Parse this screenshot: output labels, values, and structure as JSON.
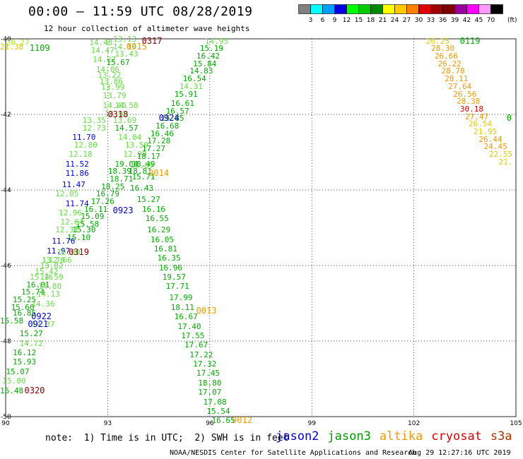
{
  "header": {
    "title": "00:00 – 11:59 UTC 08/28/2019",
    "subtitle": "12 hour collection of altimeter wave heights"
  },
  "colorbar": {
    "unit_label": "(ft)",
    "colors": [
      "#808080",
      "#00ffff",
      "#00a0ff",
      "#0000e0",
      "#00ff00",
      "#00cc00",
      "#008800",
      "#ffff00",
      "#ffc800",
      "#ff8000",
      "#e00000",
      "#a00000",
      "#800000",
      "#990099",
      "#ff00ff",
      "#ff99ff",
      "#000000"
    ],
    "ticks": [
      "3",
      "6",
      "9",
      "12",
      "15",
      "18",
      "21",
      "24",
      "27",
      "30",
      "33",
      "36",
      "39",
      "42",
      "45",
      "70"
    ]
  },
  "map": {
    "lon_min": 90,
    "lon_max": 105,
    "lat_min": -50,
    "lat_max": -40,
    "lon_ticks": [
      "90",
      "93",
      "96",
      "99",
      "102",
      "105"
    ],
    "lat_ticks": [
      "-40",
      "-42",
      "-44",
      "-46",
      "-48",
      "-50"
    ]
  },
  "palette": {
    "green": "#00aa00",
    "lightgreen": "#66dd44",
    "yellowgreen": "#aaee22",
    "blue": "#0000cc",
    "yellow": "#ddcc00",
    "orange": "#ee9900",
    "dorange": "#dd7700",
    "red": "#cc0000",
    "dred": "#880000"
  },
  "chart_data": {
    "type": "scatter",
    "xlabel": "",
    "ylabel": "",
    "xlim": [
      90,
      105
    ],
    "ylim": [
      -50,
      -40
    ],
    "points": [
      {
        "x": 90.35,
        "y": -40.1,
        "v": "20.27",
        "c": "yellowgreen"
      },
      {
        "x": 90.15,
        "y": -40.2,
        "v": "21.38",
        "c": "yellow"
      },
      {
        "x": 92.8,
        "y": -40.1,
        "v": "14.48",
        "c": "lightgreen"
      },
      {
        "x": 93.5,
        "y": -40.0,
        "v": "13.13",
        "c": "lightgreen"
      },
      {
        "x": 92.85,
        "y": -40.3,
        "v": "14.47",
        "c": "lightgreen"
      },
      {
        "x": 93.5,
        "y": -40.2,
        "v": "14.19",
        "c": "lightgreen"
      },
      {
        "x": 93.55,
        "y": -40.4,
        "v": "13.43",
        "c": "lightgreen"
      },
      {
        "x": 92.9,
        "y": -40.55,
        "v": "14.27",
        "c": "lightgreen"
      },
      {
        "x": 93.3,
        "y": -40.62,
        "v": "15.67",
        "c": "green"
      },
      {
        "x": 93.0,
        "y": -40.8,
        "v": "14.06",
        "c": "lightgreen"
      },
      {
        "x": 93.05,
        "y": -40.96,
        "v": "13.22",
        "c": "lightgreen"
      },
      {
        "x": 93.1,
        "y": -41.12,
        "v": "13.86",
        "c": "lightgreen"
      },
      {
        "x": 93.15,
        "y": -41.28,
        "v": "13.99",
        "c": "lightgreen"
      },
      {
        "x": 93.2,
        "y": -41.5,
        "v": "13.79",
        "c": "lightgreen"
      },
      {
        "x": 93.2,
        "y": -41.75,
        "v": "14.40",
        "c": "lightgreen"
      },
      {
        "x": 93.55,
        "y": -41.75,
        "v": "14.50",
        "c": "lightgreen"
      },
      {
        "x": 93.25,
        "y": -41.98,
        "v": "13.93",
        "c": "lightgreen"
      },
      {
        "x": 92.6,
        "y": -42.15,
        "v": "13.35",
        "c": "lightgreen"
      },
      {
        "x": 93.5,
        "y": -42.15,
        "v": "13.69",
        "c": "lightgreen"
      },
      {
        "x": 92.6,
        "y": -42.35,
        "v": "12.73",
        "c": "lightgreen"
      },
      {
        "x": 93.55,
        "y": -42.35,
        "v": "14.57",
        "c": "green"
      },
      {
        "x": 92.3,
        "y": -42.6,
        "v": "11.70",
        "c": "blue"
      },
      {
        "x": 93.65,
        "y": -42.6,
        "v": "14.04",
        "c": "lightgreen"
      },
      {
        "x": 92.35,
        "y": -42.8,
        "v": "12.80",
        "c": "lightgreen"
      },
      {
        "x": 93.85,
        "y": -42.8,
        "v": "13.50",
        "c": "lightgreen"
      },
      {
        "x": 92.2,
        "y": -43.05,
        "v": "12.18",
        "c": "lightgreen"
      },
      {
        "x": 93.8,
        "y": -43.05,
        "v": "12.99",
        "c": "lightgreen"
      },
      {
        "x": 92.1,
        "y": -43.3,
        "v": "11.52",
        "c": "blue"
      },
      {
        "x": 93.55,
        "y": -43.3,
        "v": "19.04",
        "c": "green"
      },
      {
        "x": 94.0,
        "y": -43.35,
        "v": "15.89",
        "c": "lightgreen"
      },
      {
        "x": 92.1,
        "y": -43.55,
        "v": "11.86",
        "c": "blue"
      },
      {
        "x": 93.35,
        "y": -43.5,
        "v": "18.39",
        "c": "green"
      },
      {
        "x": 93.4,
        "y": -43.7,
        "v": "18.71",
        "c": "green"
      },
      {
        "x": 94.05,
        "y": -43.65,
        "v": "15.71",
        "c": "green"
      },
      {
        "x": 92.0,
        "y": -43.85,
        "v": "11.47",
        "c": "blue"
      },
      {
        "x": 93.15,
        "y": -43.9,
        "v": "18.25",
        "c": "green"
      },
      {
        "x": 94.0,
        "y": -43.95,
        "v": "16.43",
        "c": "green"
      },
      {
        "x": 91.8,
        "y": -44.1,
        "v": "12.05",
        "c": "lightgreen"
      },
      {
        "x": 93.0,
        "y": -44.1,
        "v": "16.79",
        "c": "green"
      },
      {
        "x": 92.1,
        "y": -44.35,
        "v": "11.74",
        "c": "blue"
      },
      {
        "x": 92.85,
        "y": -44.3,
        "v": "17.26",
        "c": "green"
      },
      {
        "x": 94.2,
        "y": -44.25,
        "v": "15.27",
        "c": "green"
      },
      {
        "x": 92.65,
        "y": -44.5,
        "v": "16.11",
        "c": "green"
      },
      {
        "x": 91.9,
        "y": -44.6,
        "v": "12.96",
        "c": "lightgreen"
      },
      {
        "x": 92.55,
        "y": -44.7,
        "v": "15.09",
        "c": "green"
      },
      {
        "x": 94.35,
        "y": -44.5,
        "v": "16.16",
        "c": "green"
      },
      {
        "x": 92.4,
        "y": -44.9,
        "v": "15.58",
        "c": "green"
      },
      {
        "x": 91.95,
        "y": -44.85,
        "v": "12.64",
        "c": "lightgreen"
      },
      {
        "x": 94.45,
        "y": -44.75,
        "v": "16.55",
        "c": "green"
      },
      {
        "x": 91.8,
        "y": -45.05,
        "v": "12.31",
        "c": "lightgreen"
      },
      {
        "x": 92.3,
        "y": -45.05,
        "v": "15.30",
        "c": "green"
      },
      {
        "x": 94.5,
        "y": -45.05,
        "v": "16.29",
        "c": "green"
      },
      {
        "x": 92.15,
        "y": -45.25,
        "v": "15.10",
        "c": "green"
      },
      {
        "x": 91.7,
        "y": -45.35,
        "v": "11.76",
        "c": "blue"
      },
      {
        "x": 94.6,
        "y": -45.3,
        "v": "16.05",
        "c": "green"
      },
      {
        "x": 91.55,
        "y": -45.6,
        "v": "11.97",
        "c": "blue"
      },
      {
        "x": 91.85,
        "y": -45.65,
        "v": "12.80",
        "c": "lightgreen"
      },
      {
        "x": 94.7,
        "y": -45.55,
        "v": "16.81",
        "c": "green"
      },
      {
        "x": 91.4,
        "y": -45.85,
        "v": "13.76",
        "c": "lightgreen"
      },
      {
        "x": 91.6,
        "y": -45.85,
        "v": "12.66",
        "c": "lightgreen"
      },
      {
        "x": 94.8,
        "y": -45.8,
        "v": "16.35",
        "c": "green"
      },
      {
        "x": 91.35,
        "y": -46.0,
        "v": "13.82",
        "c": "lightgreen"
      },
      {
        "x": 91.2,
        "y": -46.15,
        "v": "15.42",
        "c": "lightgreen"
      },
      {
        "x": 94.85,
        "y": -46.05,
        "v": "16.96",
        "c": "green"
      },
      {
        "x": 91.05,
        "y": -46.3,
        "v": "15.16",
        "c": "lightgreen"
      },
      {
        "x": 91.35,
        "y": -46.3,
        "v": "14.59",
        "c": "lightgreen"
      },
      {
        "x": 94.95,
        "y": -46.3,
        "v": "19.57",
        "c": "green"
      },
      {
        "x": 90.95,
        "y": -46.5,
        "v": "16.01",
        "c": "green"
      },
      {
        "x": 91.3,
        "y": -46.55,
        "v": "14.80",
        "c": "lightgreen"
      },
      {
        "x": 95.05,
        "y": -46.55,
        "v": "17.71",
        "c": "green"
      },
      {
        "x": 90.8,
        "y": -46.7,
        "v": "15.74",
        "c": "green"
      },
      {
        "x": 91.25,
        "y": -46.75,
        "v": "14.13",
        "c": "lightgreen"
      },
      {
        "x": 95.15,
        "y": -46.85,
        "v": "17.99",
        "c": "green"
      },
      {
        "x": 90.55,
        "y": -46.9,
        "v": "15.25",
        "c": "green"
      },
      {
        "x": 91.1,
        "y": -47.0,
        "v": "14.36",
        "c": "lightgreen"
      },
      {
        "x": 90.5,
        "y": -47.1,
        "v": "15.60",
        "c": "green"
      },
      {
        "x": 95.2,
        "y": -47.1,
        "v": "18.11",
        "c": "green"
      },
      {
        "x": 90.55,
        "y": -47.25,
        "v": "16.85",
        "c": "green"
      },
      {
        "x": 95.3,
        "y": -47.35,
        "v": "16.67",
        "c": "green"
      },
      {
        "x": 90.15,
        "y": -47.45,
        "v": "15.58",
        "c": "green"
      },
      {
        "x": 91.1,
        "y": -47.55,
        "v": "14.37",
        "c": "lightgreen"
      },
      {
        "x": 95.4,
        "y": -47.6,
        "v": "17.40",
        "c": "green"
      },
      {
        "x": 90.75,
        "y": -47.8,
        "v": "15.27",
        "c": "green"
      },
      {
        "x": 95.5,
        "y": -47.85,
        "v": "17.55",
        "c": "green"
      },
      {
        "x": 90.75,
        "y": -48.05,
        "v": "14.72",
        "c": "lightgreen"
      },
      {
        "x": 95.6,
        "y": -48.1,
        "v": "17.67",
        "c": "green"
      },
      {
        "x": 90.55,
        "y": -48.3,
        "v": "16.12",
        "c": "green"
      },
      {
        "x": 95.75,
        "y": -48.35,
        "v": "17.22",
        "c": "green"
      },
      {
        "x": 90.55,
        "y": -48.55,
        "v": "15.93",
        "c": "green"
      },
      {
        "x": 95.85,
        "y": -48.6,
        "v": "17.32",
        "c": "green"
      },
      {
        "x": 90.35,
        "y": -48.8,
        "v": "15.07",
        "c": "green"
      },
      {
        "x": 95.95,
        "y": -48.85,
        "v": "17.45",
        "c": "green"
      },
      {
        "x": 90.25,
        "y": -49.05,
        "v": "15.00",
        "c": "lightgreen"
      },
      {
        "x": 96.0,
        "y": -49.1,
        "v": "18.80",
        "c": "green"
      },
      {
        "x": 90.05,
        "y": -49.3,
        "v": "16.48",
        "c": "green"
      },
      {
        "x": 96.0,
        "y": -49.35,
        "v": "17.07",
        "c": "green"
      },
      {
        "x": 96.15,
        "y": -49.6,
        "v": "17.08",
        "c": "green"
      },
      {
        "x": 96.25,
        "y": -49.85,
        "v": "15.54",
        "c": "green"
      },
      {
        "x": 96.4,
        "y": -50.1,
        "v": "16.65",
        "c": "green"
      },
      {
        "x": 96.2,
        "y": -40.05,
        "v": "14.95",
        "c": "lightgreen"
      },
      {
        "x": 96.05,
        "y": -40.25,
        "v": "15.19",
        "c": "green"
      },
      {
        "x": 95.95,
        "y": -40.45,
        "v": "16.42",
        "c": "green"
      },
      {
        "x": 95.85,
        "y": -40.65,
        "v": "15.84",
        "c": "green"
      },
      {
        "x": 95.75,
        "y": -40.85,
        "v": "14.83",
        "c": "green"
      },
      {
        "x": 95.55,
        "y": -41.05,
        "v": "16.54",
        "c": "green"
      },
      {
        "x": 95.45,
        "y": -41.25,
        "v": "14.31",
        "c": "lightgreen"
      },
      {
        "x": 95.3,
        "y": -41.45,
        "v": "15.91",
        "c": "green"
      },
      {
        "x": 95.2,
        "y": -41.7,
        "v": "16.61",
        "c": "green"
      },
      {
        "x": 95.05,
        "y": -41.9,
        "v": "16.57",
        "c": "green"
      },
      {
        "x": 94.9,
        "y": -42.1,
        "v": "15.85",
        "c": "green"
      },
      {
        "x": 94.75,
        "y": -42.3,
        "v": "16.68",
        "c": "green"
      },
      {
        "x": 94.6,
        "y": -42.5,
        "v": "16.46",
        "c": "green"
      },
      {
        "x": 94.5,
        "y": -42.7,
        "v": "17.28",
        "c": "green"
      },
      {
        "x": 94.35,
        "y": -42.9,
        "v": "17.27",
        "c": "green"
      },
      {
        "x": 94.2,
        "y": -43.1,
        "v": "18.17",
        "c": "green"
      },
      {
        "x": 94.05,
        "y": -43.3,
        "v": "18.49",
        "c": "green"
      },
      {
        "x": 93.95,
        "y": -43.5,
        "v": "18.81",
        "c": "green"
      },
      {
        "x": 102.7,
        "y": -40.05,
        "v": "26.25",
        "c": "yellow"
      },
      {
        "x": 102.85,
        "y": -40.25,
        "v": "28.30",
        "c": "orange"
      },
      {
        "x": 102.95,
        "y": -40.45,
        "v": "26.66",
        "c": "orange"
      },
      {
        "x": 103.05,
        "y": -40.65,
        "v": "26.22",
        "c": "orange"
      },
      {
        "x": 103.15,
        "y": -40.85,
        "v": "28.78",
        "c": "orange"
      },
      {
        "x": 103.25,
        "y": -41.05,
        "v": "28.11",
        "c": "orange"
      },
      {
        "x": 103.35,
        "y": -41.25,
        "v": "27.64",
        "c": "orange"
      },
      {
        "x": 103.5,
        "y": -41.45,
        "v": "26.56",
        "c": "orange"
      },
      {
        "x": 103.6,
        "y": -41.65,
        "v": "28.38",
        "c": "orange"
      },
      {
        "x": 103.7,
        "y": -41.85,
        "v": "30.18",
        "c": "red"
      },
      {
        "x": 103.85,
        "y": -42.05,
        "v": "27.47",
        "c": "orange"
      },
      {
        "x": 103.95,
        "y": -42.25,
        "v": "26.54",
        "c": "yellow"
      },
      {
        "x": 104.1,
        "y": -42.45,
        "v": "21.95",
        "c": "yellow"
      },
      {
        "x": 104.25,
        "y": -42.65,
        "v": "26.44",
        "c": "orange"
      },
      {
        "x": 104.4,
        "y": -42.85,
        "v": "24.45",
        "c": "orange"
      },
      {
        "x": 104.55,
        "y": -43.05,
        "v": "22.55",
        "c": "yellow"
      },
      {
        "x": 104.7,
        "y": -43.25,
        "v": "21.",
        "c": "yellow"
      }
    ],
    "times": [
      {
        "x": 91.0,
        "y": -40.25,
        "t": "1109",
        "c": "green"
      },
      {
        "x": 93.85,
        "y": -40.2,
        "t": "0015",
        "c": "orange"
      },
      {
        "x": 94.3,
        "y": -40.05,
        "t": "0317",
        "c": "dred"
      },
      {
        "x": 93.3,
        "y": -42.0,
        "t": "0318",
        "c": "dred"
      },
      {
        "x": 94.8,
        "y": -42.1,
        "t": "0924",
        "c": "blue"
      },
      {
        "x": 94.5,
        "y": -43.55,
        "t": "0014",
        "c": "orange"
      },
      {
        "x": 93.45,
        "y": -44.55,
        "t": "0923",
        "c": "blue"
      },
      {
        "x": 92.15,
        "y": -45.65,
        "t": "0319",
        "c": "dred"
      },
      {
        "x": 91.05,
        "y": -47.35,
        "t": "0922",
        "c": "blue"
      },
      {
        "x": 90.95,
        "y": -47.55,
        "t": "0921",
        "c": "blue"
      },
      {
        "x": 95.9,
        "y": -47.2,
        "t": "0013",
        "c": "orange"
      },
      {
        "x": 90.85,
        "y": -49.3,
        "t": "0320",
        "c": "dred"
      },
      {
        "x": 96.95,
        "y": -50.1,
        "t": "0012",
        "c": "orange"
      },
      {
        "x": 103.65,
        "y": -40.05,
        "t": "0119",
        "c": "green"
      },
      {
        "x": 104.8,
        "y": -42.1,
        "t": "0",
        "c": "green"
      }
    ]
  },
  "footer": {
    "note": "note:  1) Time is in UTC;  2) SWH is in feet",
    "satellites": [
      {
        "name": "jason2",
        "color": "#0000cc"
      },
      {
        "name": "jason3",
        "color": "#009900"
      },
      {
        "name": "altika",
        "color": "#ee9900"
      },
      {
        "name": "cryosat",
        "color": "#dd0000"
      },
      {
        "name": "s3a",
        "color": "#aa3300"
      }
    ],
    "credit": "NOAA/NESDIS Center for Satellite Applications and Research",
    "timestamp": "Aug 29 12:27:16 UTC 2019"
  }
}
